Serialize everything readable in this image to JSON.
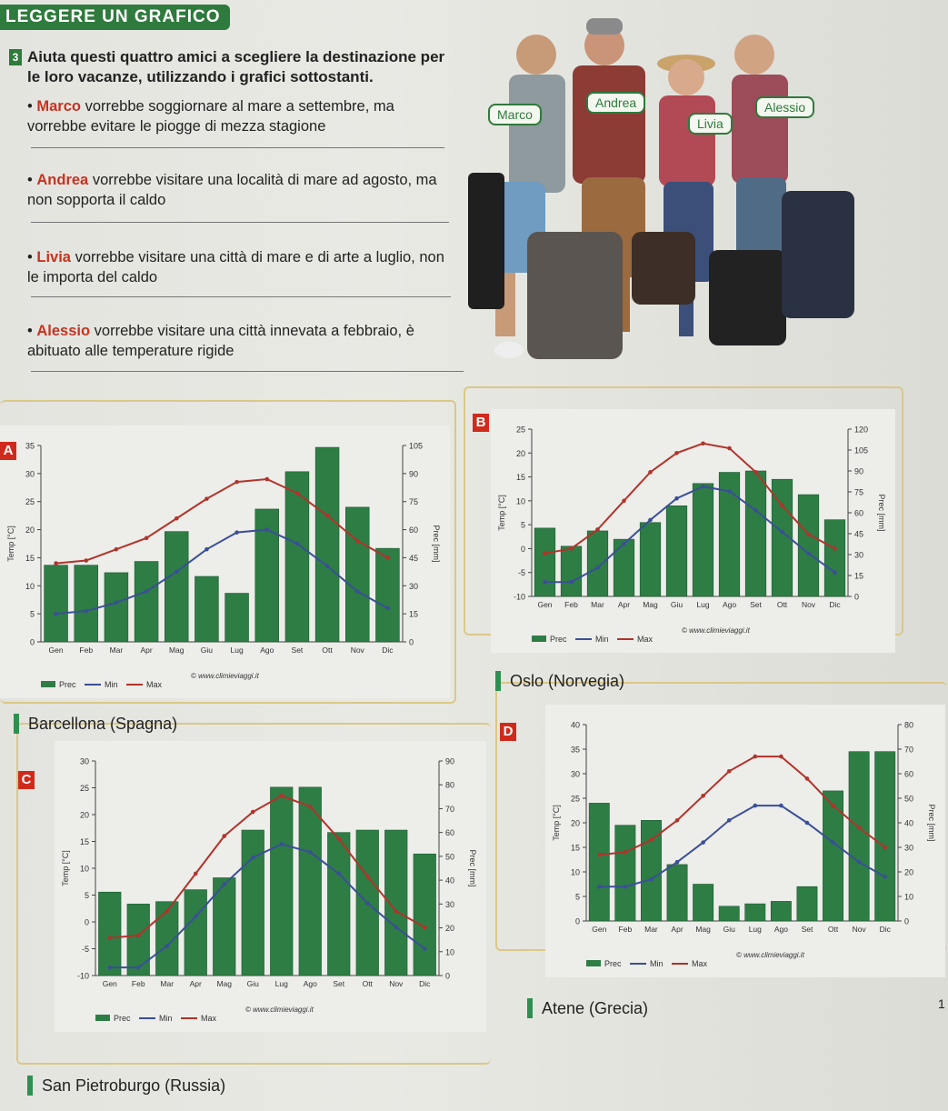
{
  "header": {
    "title": "LEGGERE UN GRAFICO"
  },
  "exercise": {
    "number": "3",
    "instruction": "Aiuta questi quattro amici a scegliere la destinazione per le loro vacanze, utilizzando i grafici sottostanti."
  },
  "friends": [
    {
      "name": "Marco",
      "rest": " vorrebbe soggiornare al mare a settembre, ma vorrebbe evitare le piogge di mezza stagione"
    },
    {
      "name": "Andrea",
      "rest": " vorrebbe visitare una località di mare ad agosto, ma non sopporta il caldo"
    },
    {
      "name": "Livia",
      "rest": " vorrebbe visitare una città di mare e di arte a luglio, non le importa del caldo"
    },
    {
      "name": "Alessio",
      "rest": " vorrebbe visitare una città innevata a febbraio, è abituato alle temperature rigide"
    }
  ],
  "photo_labels": {
    "marco": "Marco",
    "andrea": "Andrea",
    "livia": "Livia",
    "alessio": "Alessio"
  },
  "legend": {
    "prec": "Prec",
    "min": "Min",
    "max": "Max",
    "source": "© www.climieviaggi.it"
  },
  "axis_labels": {
    "temp": "Temp [°C]",
    "prec": "Prec [mm]"
  },
  "months": [
    "Gen",
    "Feb",
    "Mar",
    "Apr",
    "Mag",
    "Giu",
    "Lug",
    "Ago",
    "Set",
    "Ott",
    "Nov",
    "Dic"
  ],
  "page_number": "1",
  "colors": {
    "bar": "#2e7d45",
    "min": "#3a4f96",
    "max": "#b0342b",
    "accent": "#2f7a3d",
    "letter": "#d02a1c"
  },
  "chart_data": [
    {
      "id": "A",
      "type": "bar+line",
      "city": "Barcellona (Spagna)",
      "categories": [
        "Gen",
        "Feb",
        "Mar",
        "Apr",
        "Mag",
        "Giu",
        "Lug",
        "Ago",
        "Set",
        "Ott",
        "Nov",
        "Dic"
      ],
      "temp_ylim": [
        0,
        35
      ],
      "temp_ticks": [
        0,
        5,
        10,
        15,
        20,
        25,
        30,
        35
      ],
      "prec_ylim": [
        0,
        105
      ],
      "prec_ticks": [
        0,
        15,
        30,
        45,
        60,
        75,
        90,
        105
      ],
      "series": [
        {
          "name": "Prec",
          "values": [
            41,
            41,
            37,
            43,
            59,
            35,
            26,
            71,
            91,
            104,
            72,
            50
          ]
        },
        {
          "name": "Min",
          "values": [
            5,
            5.5,
            7,
            9,
            12.5,
            16.5,
            19.5,
            20,
            17.5,
            13.5,
            9,
            6
          ]
        },
        {
          "name": "Max",
          "values": [
            14,
            14.5,
            16.5,
            18.5,
            22,
            25.5,
            28.5,
            29,
            26.5,
            22.5,
            18,
            15
          ]
        }
      ]
    },
    {
      "id": "B",
      "type": "bar+line",
      "city": "Oslo (Norvegia)",
      "categories": [
        "Gen",
        "Feb",
        "Mar",
        "Apr",
        "Mag",
        "Giu",
        "Lug",
        "Ago",
        "Set",
        "Ott",
        "Nov",
        "Dic"
      ],
      "temp_ylim": [
        -10,
        25
      ],
      "temp_ticks": [
        -10,
        -5,
        0,
        5,
        10,
        15,
        20,
        25
      ],
      "prec_ylim": [
        0,
        120
      ],
      "prec_ticks": [
        0,
        15,
        30,
        45,
        60,
        75,
        90,
        105,
        120
      ],
      "series": [
        {
          "name": "Prec",
          "values": [
            49,
            36,
            47,
            41,
            53,
            65,
            81,
            89,
            90,
            84,
            73,
            55
          ]
        },
        {
          "name": "Min",
          "values": [
            -7,
            -7,
            -4,
            1,
            6,
            10.5,
            13,
            12,
            8,
            3.5,
            -1,
            -5
          ]
        },
        {
          "name": "Max",
          "values": [
            -1,
            0,
            4,
            10,
            16,
            20,
            22,
            21,
            16,
            9,
            3,
            0
          ]
        }
      ]
    },
    {
      "id": "C",
      "type": "bar+line",
      "city": "San Pietroburgo (Russia)",
      "categories": [
        "Gen",
        "Feb",
        "Mar",
        "Apr",
        "Mag",
        "Giu",
        "Lug",
        "Ago",
        "Set",
        "Ott",
        "Nov",
        "Dic"
      ],
      "temp_ylim": [
        -10,
        30
      ],
      "temp_ticks": [
        -10,
        -5,
        0,
        5,
        10,
        15,
        20,
        25,
        30
      ],
      "prec_ylim": [
        0,
        90
      ],
      "prec_ticks": [
        0,
        10,
        20,
        30,
        40,
        50,
        60,
        70,
        80,
        90
      ],
      "series": [
        {
          "name": "Prec",
          "values": [
            35,
            30,
            31,
            36,
            41,
            61,
            79,
            79,
            60,
            61,
            61,
            51
          ]
        },
        {
          "name": "Min",
          "values": [
            -8.5,
            -8.5,
            -4.5,
            1,
            7,
            12,
            14.5,
            13,
            9,
            3.5,
            -1,
            -5
          ]
        },
        {
          "name": "Max",
          "values": [
            -3,
            -2.5,
            2,
            9,
            16,
            20.5,
            23.5,
            21.5,
            15.5,
            8.5,
            2,
            -1
          ]
        }
      ]
    },
    {
      "id": "D",
      "type": "bar+line",
      "city": "Atene (Grecia)",
      "categories": [
        "Gen",
        "Feb",
        "Mar",
        "Apr",
        "Mag",
        "Giu",
        "Lug",
        "Ago",
        "Set",
        "Ott",
        "Nov",
        "Dic"
      ],
      "temp_ylim": [
        0,
        40
      ],
      "temp_ticks": [
        0,
        5,
        10,
        15,
        20,
        25,
        30,
        35,
        40
      ],
      "prec_ylim": [
        0,
        80
      ],
      "prec_ticks": [
        0,
        10,
        20,
        30,
        40,
        50,
        60,
        70,
        80
      ],
      "series": [
        {
          "name": "Prec",
          "values": [
            48,
            39,
            41,
            23,
            15,
            6,
            7,
            8,
            14,
            53,
            69,
            69
          ]
        },
        {
          "name": "Min",
          "values": [
            7,
            7,
            8.5,
            12,
            16,
            20.5,
            23.5,
            23.5,
            20,
            16,
            12,
            9
          ]
        },
        {
          "name": "Max",
          "values": [
            13.5,
            14,
            16.5,
            20.5,
            25.5,
            30.5,
            33.5,
            33.5,
            29,
            23.5,
            19,
            15
          ]
        }
      ]
    }
  ]
}
